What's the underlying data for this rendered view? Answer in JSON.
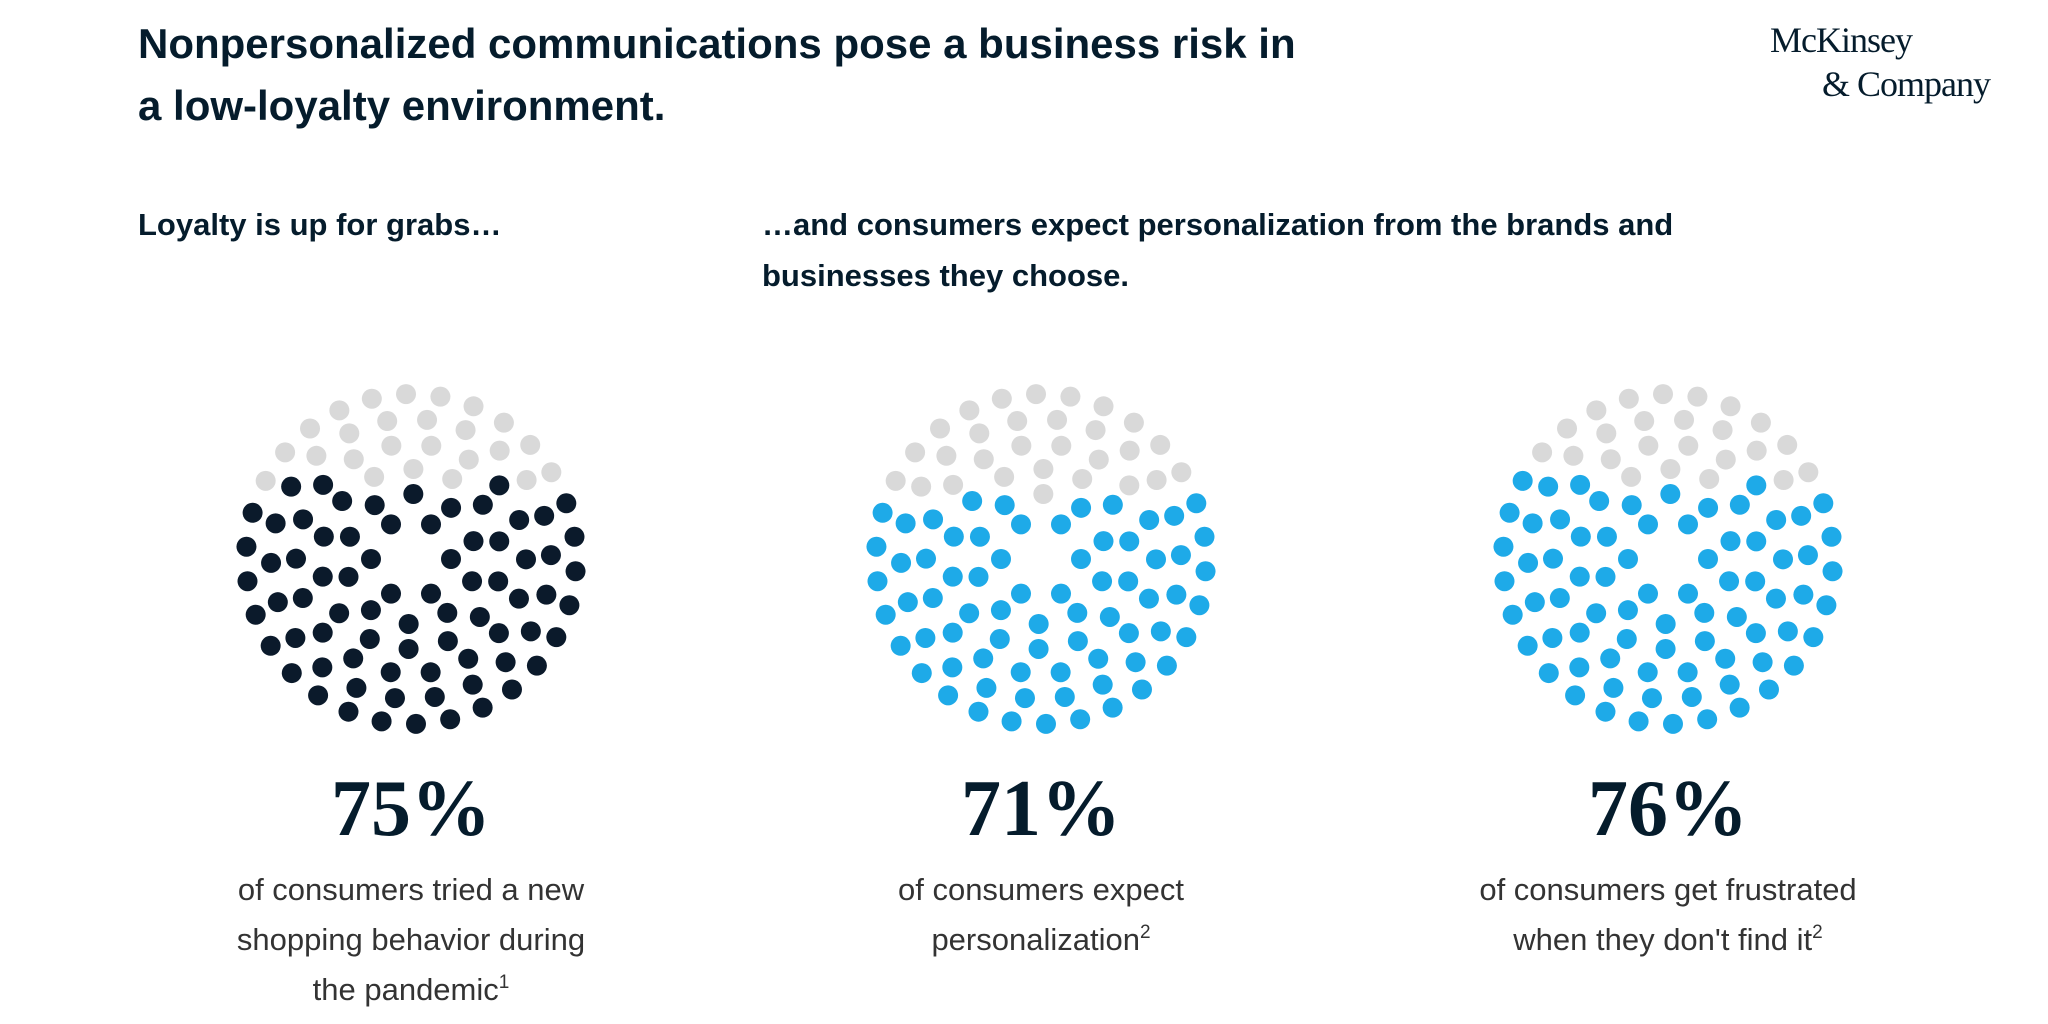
{
  "title": [
    "Nonpersonalized communications pose a business risk in",
    "a low-loyalty environment."
  ],
  "logo": [
    "McKinsey",
    "& Company"
  ],
  "section_headings": [
    [
      "Loyalty is up for grabs…"
    ],
    [
      "…and consumers expect personalization from the brands and",
      "businesses they choose."
    ]
  ],
  "chart_data": [
    {
      "type": "dot-pie",
      "values": [
        75
      ],
      "value_labels": [
        "75%"
      ],
      "color": "#0b1a2b",
      "rest_color": "#d9d9d9",
      "caption": [
        "of consumers tried a new",
        "shopping behavior during",
        "the pandemic"
      ],
      "note": "1"
    },
    {
      "type": "dot-pie",
      "values": [
        71
      ],
      "value_labels": [
        "71%"
      ],
      "color": "#1eaae8",
      "rest_color": "#d9d9d9",
      "caption": [
        "of consumers expect",
        "personalization"
      ],
      "note": "2"
    },
    {
      "type": "dot-pie",
      "values": [
        76
      ],
      "value_labels": [
        "76%"
      ],
      "color": "#1eaae8",
      "rest_color": "#d9d9d9",
      "caption": [
        "of consumers get frustrated",
        "when they don't find it"
      ],
      "note": "2"
    }
  ]
}
